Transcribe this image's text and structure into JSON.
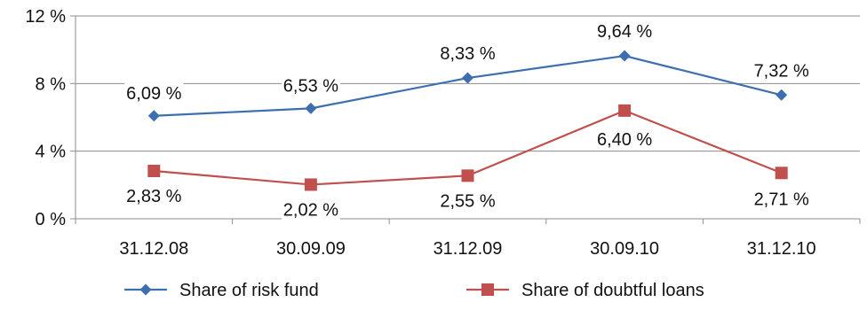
{
  "chart_data": {
    "type": "line",
    "title": "",
    "xlabel": "",
    "ylabel": "",
    "categories": [
      "31.12.08",
      "30.09.09",
      "31.12.09",
      "30.09.10",
      "31.12.10"
    ],
    "y_ticks": [
      "0 %",
      "4 %",
      "8 %",
      "12 %"
    ],
    "y_tick_values": [
      0,
      4,
      8,
      12
    ],
    "ylim": [
      0,
      12
    ],
    "grid": "horizontal",
    "legend_position": "bottom",
    "series": [
      {
        "name": "Share of risk fund",
        "values": [
          6.09,
          6.53,
          8.33,
          9.64,
          7.32
        ],
        "labels": [
          "6,09 %",
          "6,53 %",
          "8,33 %",
          "9,64 %",
          "7,32 %"
        ],
        "color": "#3d6fb0",
        "marker": "diamond"
      },
      {
        "name": "Share of doubtful loans",
        "values": [
          2.83,
          2.02,
          2.55,
          6.4,
          2.71
        ],
        "labels": [
          "2,83 %",
          "2,02 %",
          "2,55 %",
          "6,40 %",
          "2,71 %"
        ],
        "color": "#c0504d",
        "marker": "square"
      }
    ]
  }
}
